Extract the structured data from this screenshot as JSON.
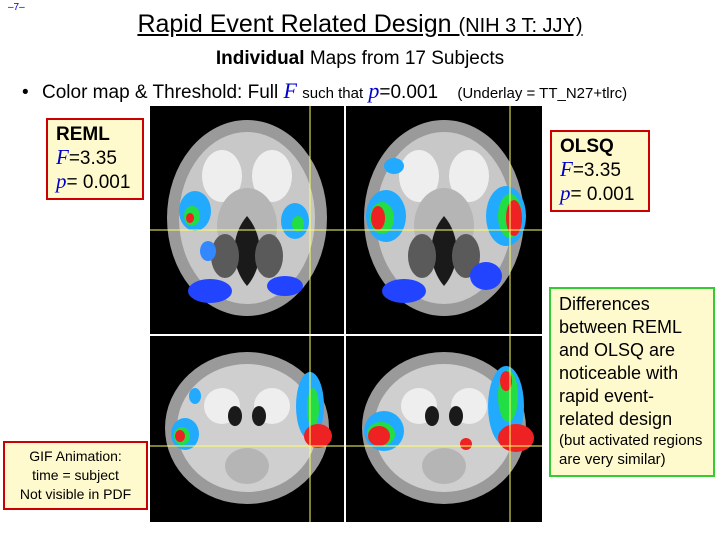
{
  "slide": {
    "number": "–7–",
    "title_main": "Rapid Event Related Design",
    "title_sub": "(NIH 3 T: JJY)",
    "subtitle_bold": "Individual",
    "subtitle_rest": "Maps from 17 Subjects"
  },
  "bullet": {
    "prefix": "Color map & Threshold:",
    "full": "Full",
    "var_f": "F",
    "such_that": "such that",
    "var_p": "p",
    "p_value": "=0.001",
    "underlay": "(Underlay = TT_N27+tlrc)"
  },
  "reml": {
    "name": "REML",
    "f_var": "F",
    "f_value": "=3.35",
    "p_var": "p",
    "p_value": "= 0.001"
  },
  "olsq": {
    "name": "OLSQ",
    "f_var": "F",
    "f_value": "=3.35",
    "p_var": "p",
    "p_value": "= 0.001"
  },
  "differences": {
    "main": "Differences between REML and OLSQ are noticeable with rapid event-related design",
    "note": "(but activated regions are very similar)"
  },
  "gif_note": {
    "line1": "GIF Animation:",
    "line2": "time = subject",
    "line3": "Not visible in PDF"
  },
  "colors": {
    "accent_blue": "#0000cc",
    "box_fill": "#fffacd",
    "red_border": "#cc0000",
    "green_border": "#33cc33",
    "crosshair": "#ffff66"
  }
}
